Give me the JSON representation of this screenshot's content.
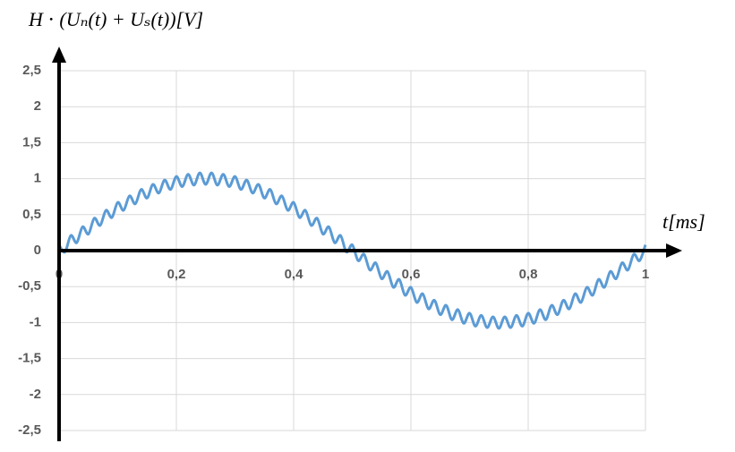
{
  "chart_data": {
    "type": "line",
    "y_label": "H ⋅ (Uₙ(t) + Uₛ(t))[V]",
    "x_label": "t[ms]",
    "xlim": [
      0,
      1
    ],
    "ylim": [
      -2.5,
      2.5
    ],
    "xticks": [
      {
        "value": 0,
        "label": "0"
      },
      {
        "value": 0.2,
        "label": "0,2"
      },
      {
        "value": 0.4,
        "label": "0,4"
      },
      {
        "value": 0.6,
        "label": "0,6"
      },
      {
        "value": 0.8,
        "label": "0,8"
      },
      {
        "value": 1,
        "label": "1"
      }
    ],
    "yticks": [
      {
        "value": 2.5,
        "label": "2,5"
      },
      2,
      {
        "value": 1.5,
        "label": "1,5"
      },
      1,
      {
        "value": 0.5,
        "label": "0,5"
      },
      0,
      {
        "value": -0.5,
        "label": "-0,5"
      },
      -1,
      {
        "value": -1.5,
        "label": "-1,5"
      },
      -2,
      {
        "value": -2.5,
        "label": "-2,5"
      }
    ],
    "grid": true,
    "x": [
      0,
      0.01,
      0.02,
      0.03,
      0.04,
      0.05,
      0.06,
      0.07,
      0.08,
      0.09,
      0.1,
      0.11,
      0.12,
      0.13,
      0.14,
      0.15,
      0.16,
      0.17,
      0.18,
      0.19,
      0.2,
      0.21,
      0.22,
      0.23,
      0.24,
      0.25,
      0.26,
      0.27,
      0.28,
      0.29,
      0.3,
      0.31,
      0.32,
      0.33,
      0.34,
      0.35,
      0.36,
      0.37,
      0.38,
      0.39,
      0.4,
      0.41,
      0.42,
      0.43,
      0.44,
      0.45,
      0.46,
      0.47,
      0.48,
      0.49,
      0.5,
      0.51,
      0.52,
      0.53,
      0.54,
      0.55,
      0.56,
      0.57,
      0.58,
      0.59,
      0.6,
      0.61,
      0.62,
      0.63,
      0.64,
      0.65,
      0.66,
      0.67,
      0.68,
      0.69,
      0.7,
      0.71,
      0.72,
      0.73,
      0.74,
      0.75,
      0.76,
      0.77,
      0.78,
      0.79,
      0.8,
      0.81,
      0.82,
      0.83,
      0.84,
      0.85,
      0.86,
      0.87,
      0.88,
      0.89,
      0.9,
      0.91,
      0.92,
      0.93,
      0.94,
      0.95,
      0.96,
      0.97,
      0.98,
      0.99,
      1
    ],
    "series": [
      {
        "color": "#5b9bd5",
        "values": [
          0.08,
          -0.02,
          0.21,
          0.11,
          0.33,
          0.23,
          0.45,
          0.35,
          0.56,
          0.46,
          0.67,
          0.56,
          0.76,
          0.65,
          0.85,
          0.73,
          0.92,
          0.8,
          0.98,
          0.85,
          1.03,
          0.89,
          1.06,
          0.91,
          1.08,
          0.92,
          1.08,
          0.91,
          1.06,
          0.89,
          1.03,
          0.85,
          0.98,
          0.8,
          0.92,
          0.73,
          0.85,
          0.65,
          0.76,
          0.56,
          0.67,
          0.46,
          0.56,
          0.35,
          0.45,
          0.23,
          0.33,
          0.11,
          0.21,
          -0.02,
          0.08,
          -0.14,
          -0.05,
          -0.27,
          -0.17,
          -0.39,
          -0.29,
          -0.51,
          -0.4,
          -0.62,
          -0.51,
          -0.72,
          -0.6,
          -0.81,
          -0.69,
          -0.89,
          -0.76,
          -0.96,
          -0.82,
          -1.01,
          -0.87,
          -1.05,
          -0.9,
          -1.07,
          -0.92,
          -1.08,
          -0.92,
          -1.07,
          -0.9,
          -1.05,
          -0.87,
          -1.01,
          -0.82,
          -0.96,
          -0.76,
          -0.89,
          -0.69,
          -0.81,
          -0.6,
          -0.72,
          -0.51,
          -0.62,
          -0.4,
          -0.51,
          -0.29,
          -0.39,
          -0.17,
          -0.27,
          -0.05,
          -0.14,
          0.08
        ]
      }
    ]
  }
}
